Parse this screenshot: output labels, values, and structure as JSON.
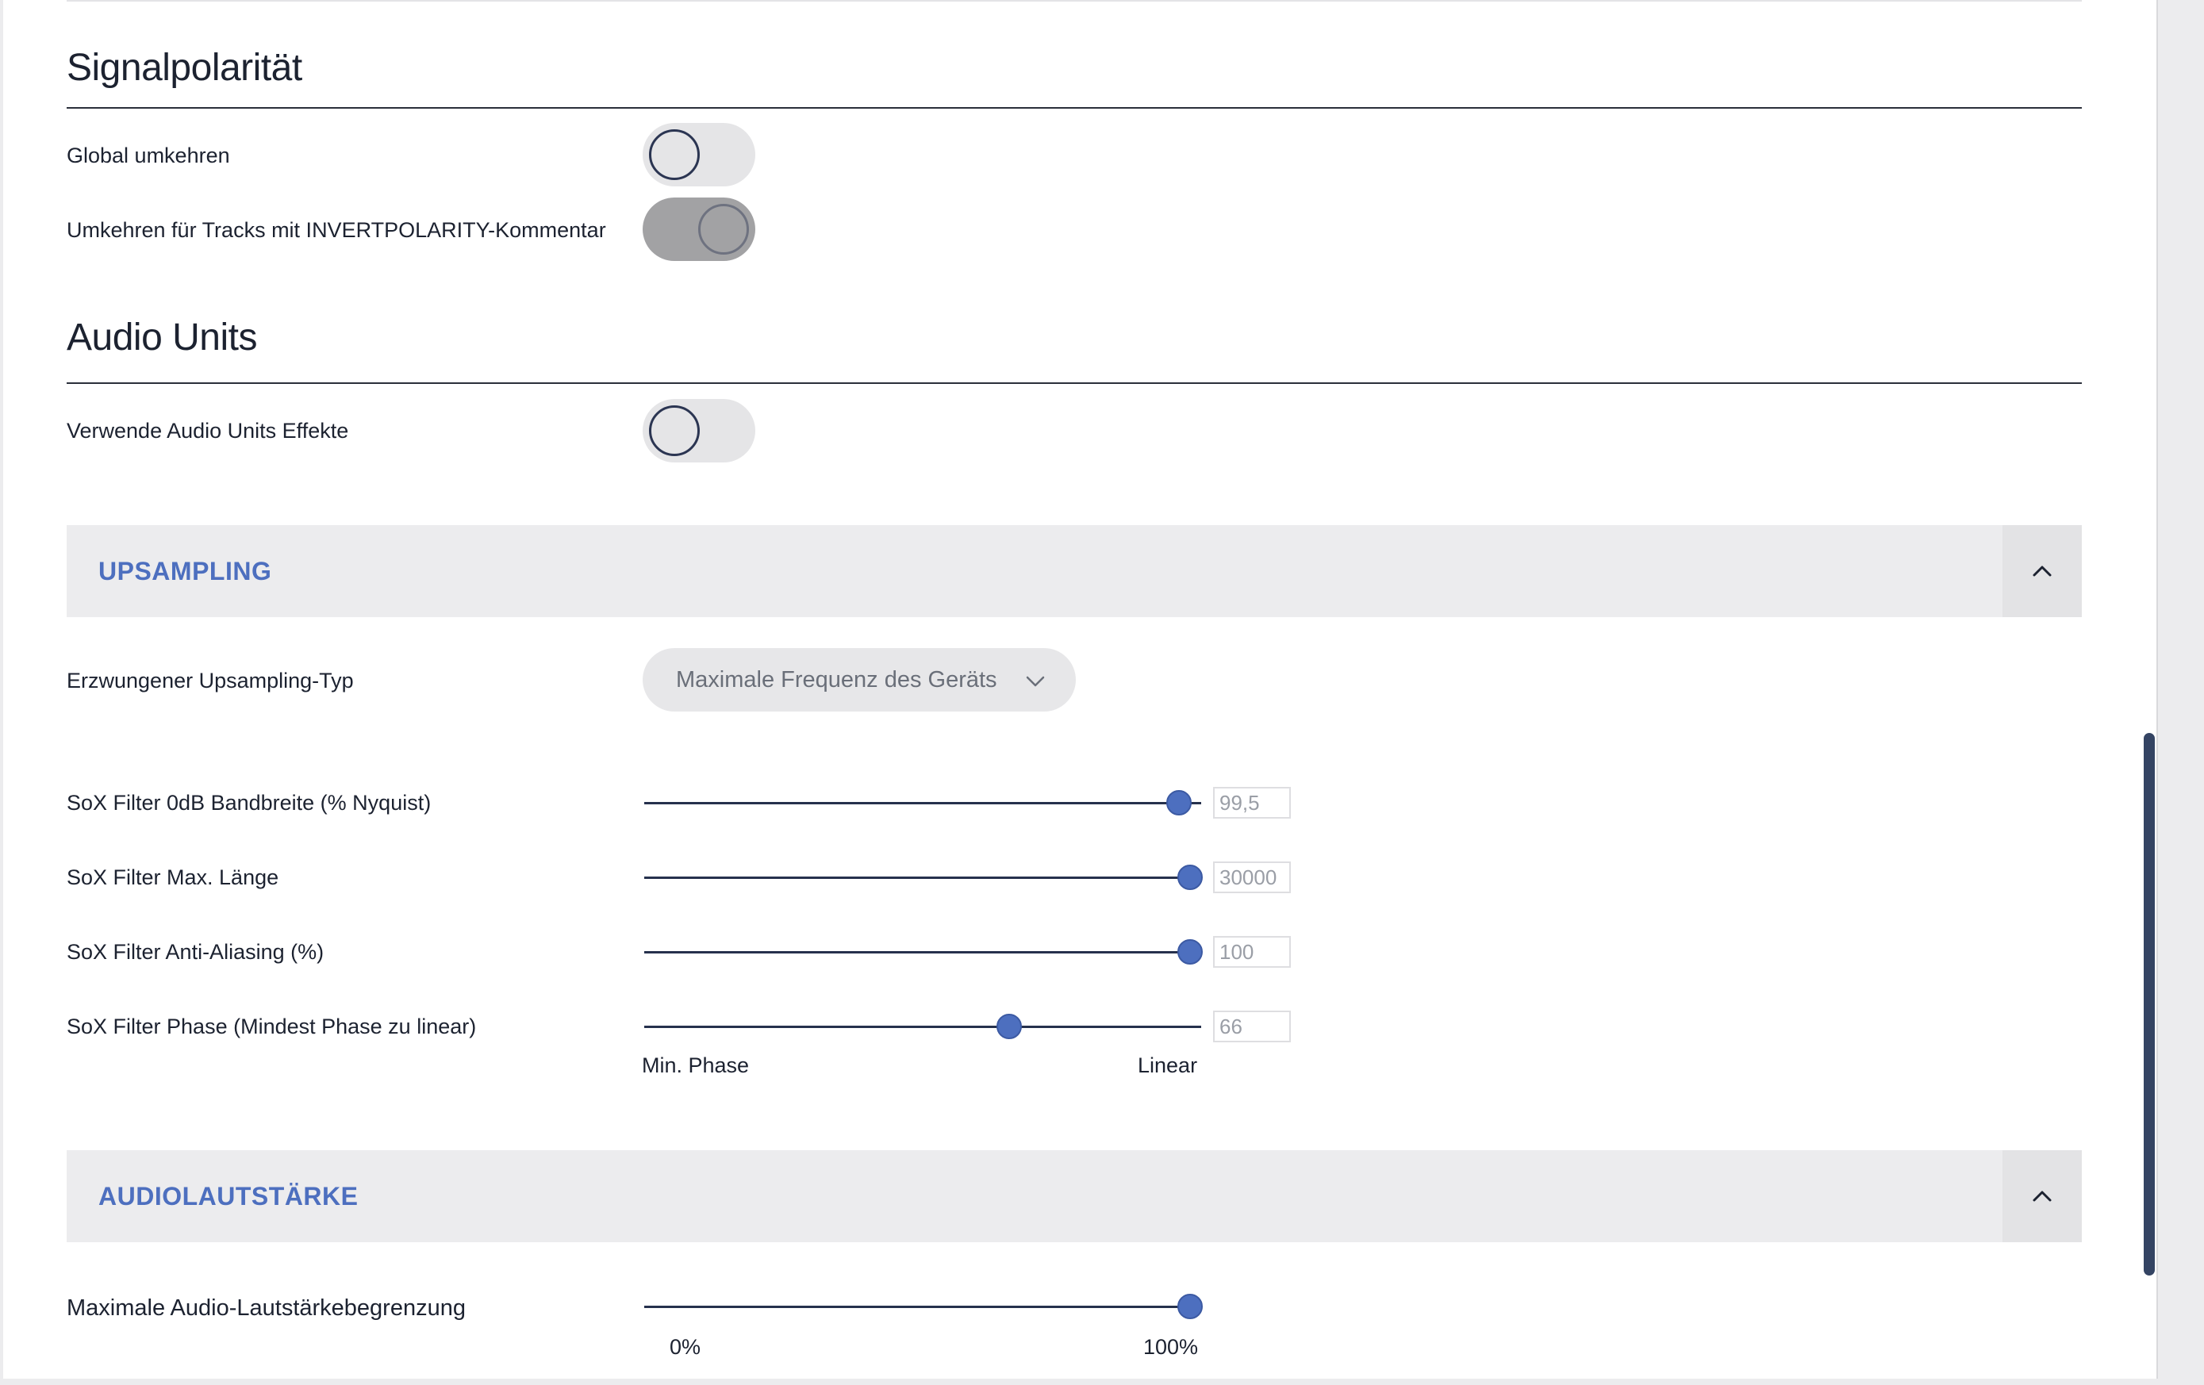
{
  "signal_polarity": {
    "title": "Signalpolarität",
    "invert_global": {
      "label": "Global umkehren",
      "enabled": false
    },
    "invert_tagged": {
      "label": "Umkehren für Tracks mit INVERTPOLARITY-Kommentar",
      "enabled": true
    }
  },
  "audio_units": {
    "title": "Audio Units",
    "use_effects": {
      "label": "Verwende Audio Units Effekte",
      "enabled": false
    }
  },
  "upsampling": {
    "header": "UPSAMPLING",
    "collapse_icon": "chevron-up-icon",
    "forced_type": {
      "label": "Erzwungener Upsampling-Typ",
      "selected": "Maximale Frequenz des Geräts",
      "icon": "chevron-down-icon"
    },
    "sliders": [
      {
        "label": "SoX Filter 0dB Bandbreite (% Nyquist)",
        "value": "99,5",
        "fraction": 0.96
      },
      {
        "label": "SoX Filter Max. Länge",
        "value": "30000",
        "fraction": 0.98
      },
      {
        "label": "SoX Filter Anti-Aliasing (%)",
        "value": "100",
        "fraction": 0.98
      },
      {
        "label": "SoX Filter Phase (Mindest Phase zu linear)",
        "value": "66",
        "fraction": 0.655
      }
    ],
    "phase_range": {
      "min_label": "Min. Phase",
      "max_label": "Linear"
    }
  },
  "audio_volume": {
    "header": "AUDIOLAUTSTÄRKE",
    "collapse_icon": "chevron-up-icon",
    "max_limit": {
      "label": "Maximale Audio-Lautstärkebegrenzung",
      "fraction": 0.98
    },
    "range": {
      "min_label": "0%",
      "max_label": "100%"
    }
  },
  "colors": {
    "accent": "#4d6fbf",
    "track": "#26314d",
    "header_bg": "#ececee",
    "scrollbar": "#344463"
  }
}
